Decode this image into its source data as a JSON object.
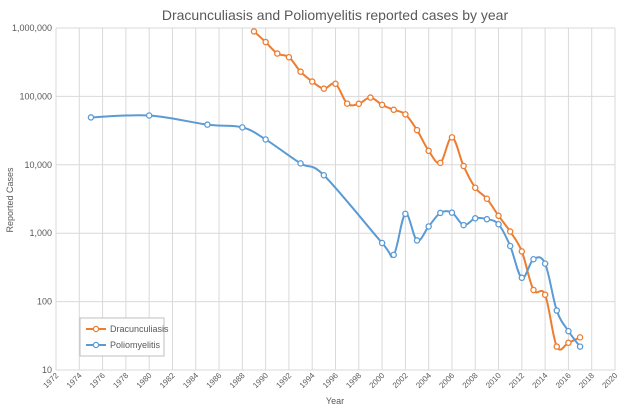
{
  "chart_data": {
    "type": "line",
    "title": "Dracunculiasis and Poliomyelitis reported cases by year",
    "xlabel": "Year",
    "ylabel": "Reported Cases",
    "xlim": [
      1972,
      2020
    ],
    "ylim": [
      10,
      1000000
    ],
    "yscale": "log",
    "grid": true,
    "legend_position": "bottom-left",
    "x_ticks": [
      "1972",
      "1974",
      "1976",
      "1978",
      "1980",
      "1982",
      "1984",
      "1986",
      "1988",
      "1990",
      "1992",
      "1994",
      "1996",
      "1998",
      "2000",
      "2002",
      "2004",
      "2006",
      "2008",
      "2010",
      "2012",
      "2014",
      "2016",
      "2018",
      "2020"
    ],
    "y_ticks": [
      {
        "value": 10,
        "label": "10"
      },
      {
        "value": 100,
        "label": "100"
      },
      {
        "value": 1000,
        "label": "1,000"
      },
      {
        "value": 10000,
        "label": "10,000"
      },
      {
        "value": 100000,
        "label": "100,000"
      },
      {
        "value": 1000000,
        "label": "1,000,000"
      }
    ],
    "series": [
      {
        "name": "Dracunculiasis",
        "color": "#ED7D31",
        "x": [
          1989,
          1990,
          1991,
          1992,
          1993,
          1994,
          1995,
          1996,
          1997,
          1998,
          1999,
          2000,
          2001,
          2002,
          2003,
          2004,
          2005,
          2006,
          2007,
          2008,
          2009,
          2010,
          2011,
          2012,
          2013,
          2014,
          2015,
          2016,
          2017
        ],
        "values": [
          892055,
          623579,
          423000,
          374202,
          229773,
          164973,
          129852,
          152814,
          78557,
          78000,
          96293,
          75223,
          63717,
          54638,
          32193,
          16026,
          10674,
          25217,
          9585,
          4619,
          3190,
          1797,
          1058,
          542,
          148,
          126,
          22,
          25,
          30
        ]
      },
      {
        "name": "Poliomyelitis",
        "color": "#5B9BD5",
        "x": [
          1975,
          1980,
          1985,
          1988,
          1990,
          1993,
          1995,
          2000,
          2001,
          2002,
          2003,
          2004,
          2005,
          2006,
          2007,
          2008,
          2009,
          2010,
          2011,
          2012,
          2013,
          2014,
          2015,
          2016,
          2017
        ],
        "values": [
          49293,
          52552,
          38637,
          35251,
          23484,
          10487,
          7035,
          719,
          483,
          1918,
          784,
          1255,
          1979,
          1997,
          1315,
          1651,
          1604,
          1352,
          650,
          223,
          416,
          359,
          74,
          37,
          22
        ]
      }
    ]
  }
}
